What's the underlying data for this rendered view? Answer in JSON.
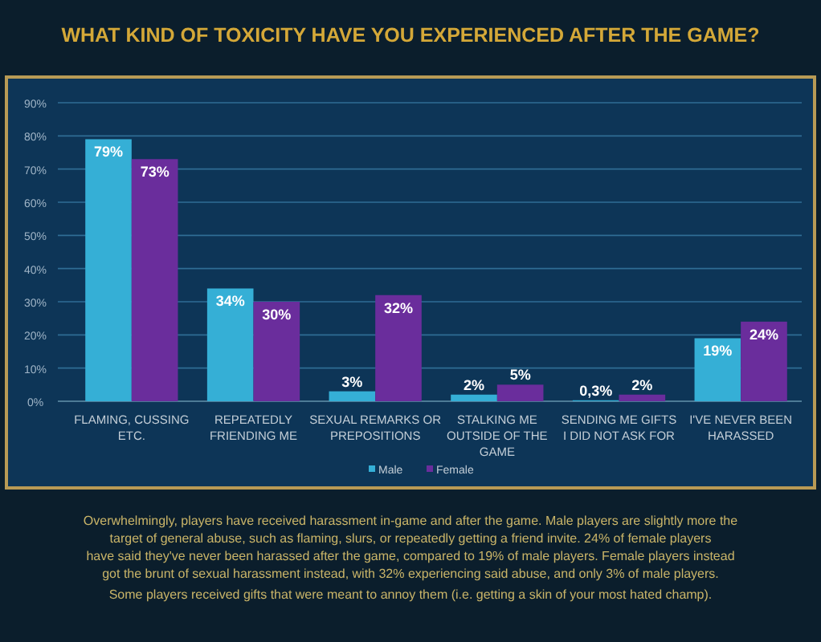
{
  "chart_data": {
    "type": "bar",
    "title": "WHAT KIND OF TOXICITY HAVE YOU EXPERIENCED AFTER THE GAME?",
    "categories": [
      "FLAMING, CUSSING ETC.",
      "REPEATEDLY FRIENDING ME",
      "SEXUAL REMARKS OR PREPOSITIONS",
      "STALKING ME OUTSIDE OF THE GAME",
      "SENDING ME GIFTS I DID NOT ASK FOR",
      "I'VE NEVER BEEN HARASSED"
    ],
    "series": [
      {
        "name": "Male",
        "color": "#35afd6",
        "values": [
          79,
          34,
          3,
          2,
          0.3,
          19
        ],
        "value_labels": [
          "79%",
          "34%",
          "3%",
          "2%",
          "0,3%",
          "19%"
        ]
      },
      {
        "name": "Female",
        "color": "#6a2d9c",
        "values": [
          73,
          30,
          32,
          5,
          2,
          24
        ],
        "value_labels": [
          "73%",
          "30%",
          "32%",
          "5%",
          "2%",
          "24%"
        ]
      }
    ],
    "ylim": [
      0,
      90
    ],
    "yticks": [
      {
        "value": 0,
        "label": "0%"
      },
      {
        "value": 10,
        "label": "10%"
      },
      {
        "value": 20,
        "label": "20%"
      },
      {
        "value": 30,
        "label": "30%"
      },
      {
        "value": 40,
        "label": "40%"
      },
      {
        "value": 50,
        "label": "50%"
      },
      {
        "value": 60,
        "label": "60%"
      },
      {
        "value": 70,
        "label": "70%"
      },
      {
        "value": 80,
        "label": "80%"
      },
      {
        "value": 90,
        "label": "90%"
      }
    ],
    "grid": "y",
    "legend": "bottom",
    "annotations": [
      "Overwhelmingly, players have received harassment in-game and after the game. Male players are slightly more the target of general abuse, such as flaming, slurs, or repeatedly getting a friend invite. 24% of female players have said they've never been harassed after the game, compared to 19% of male players. Female players instead got the brunt of sexual harassment instead, with 32% experiencing said abuse, and only 3% of male players.",
      "Some players received gifts that were meant to annoy them (i.e. getting a skin of your most hated champ)."
    ]
  }
}
